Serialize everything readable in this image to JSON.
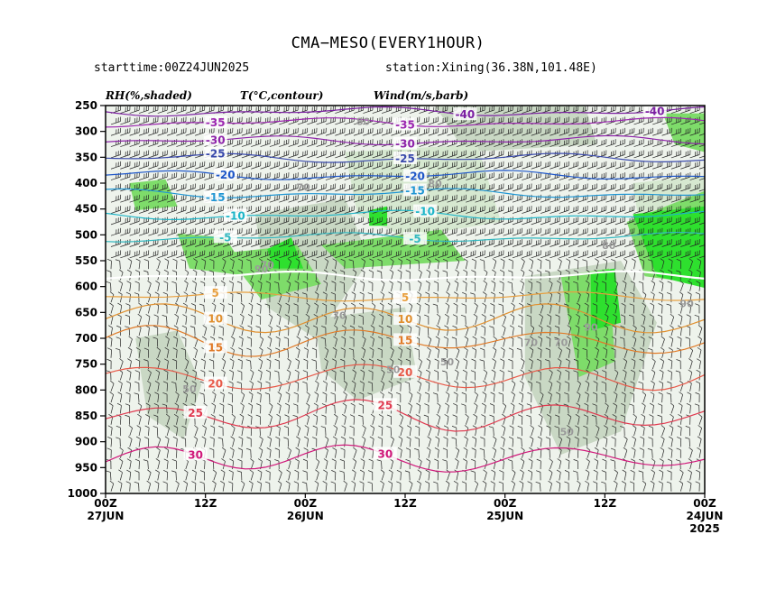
{
  "title": "CMA−MESO(EVERY1HOUR)",
  "starttime": "starttime:00Z24JUN2025",
  "station": "station:Xining(36.38N,101.48E)",
  "chart_data": {
    "type": "time-height cross-section",
    "legend": [
      "RH(%,shaded)",
      "T(°C,contour)",
      "Wind(m/s,barb)"
    ],
    "y_ticks": [
      "250",
      "300",
      "350",
      "400",
      "450",
      "500",
      "550",
      "600",
      "650",
      "700",
      "750",
      "800",
      "850",
      "900",
      "950",
      "1000"
    ],
    "x_ticks": [
      {
        "label": "00Z",
        "sub": "27JUN",
        "sub2": ""
      },
      {
        "label": "12Z",
        "sub": "",
        "sub2": ""
      },
      {
        "label": "00Z",
        "sub": "26JUN",
        "sub2": ""
      },
      {
        "label": "12Z",
        "sub": "",
        "sub2": ""
      },
      {
        "label": "00Z",
        "sub": "25JUN",
        "sub2": ""
      },
      {
        "label": "12Z",
        "sub": "",
        "sub2": ""
      },
      {
        "label": "00Z",
        "sub": "24JUN",
        "sub2": "2025"
      }
    ],
    "ylim": [
      250,
      1000
    ],
    "temperature_levels": [
      {
        "value": -40,
        "label": "-40",
        "color": "#7b1fa2"
      },
      {
        "value": -35,
        "label": "-35",
        "color": "#9c27b0"
      },
      {
        "value": -30,
        "label": "-30",
        "color": "#8e24aa"
      },
      {
        "value": -25,
        "label": "-25",
        "color": "#3949ab"
      },
      {
        "value": -20,
        "label": "-20",
        "color": "#1e56c8"
      },
      {
        "value": -15,
        "label": "-15",
        "color": "#2196d3"
      },
      {
        "value": -10,
        "label": "-10",
        "color": "#1cb5c8"
      },
      {
        "value": -5,
        "label": "-5",
        "color": "#33b8c0"
      },
      {
        "value": 0,
        "label": "",
        "color": "#ffffff"
      },
      {
        "value": 5,
        "label": "5",
        "color": "#e8a040"
      },
      {
        "value": 10,
        "label": "10",
        "color": "#e09030"
      },
      {
        "value": 15,
        "label": "15",
        "color": "#e07a28"
      },
      {
        "value": 20,
        "label": "20",
        "color": "#e85a4a"
      },
      {
        "value": 25,
        "label": "25",
        "color": "#e03a50"
      },
      {
        "value": 30,
        "label": "30",
        "color": "#d0187a"
      }
    ],
    "rh_shading_colors": {
      "50": "#e2ecde",
      "70": "#c9d8c4",
      "80": "#d6e8d0",
      "90": "#7edc6a",
      "95": "#2ee02e"
    },
    "rh_labels": [
      "50",
      "70",
      "80",
      "90"
    ]
  }
}
